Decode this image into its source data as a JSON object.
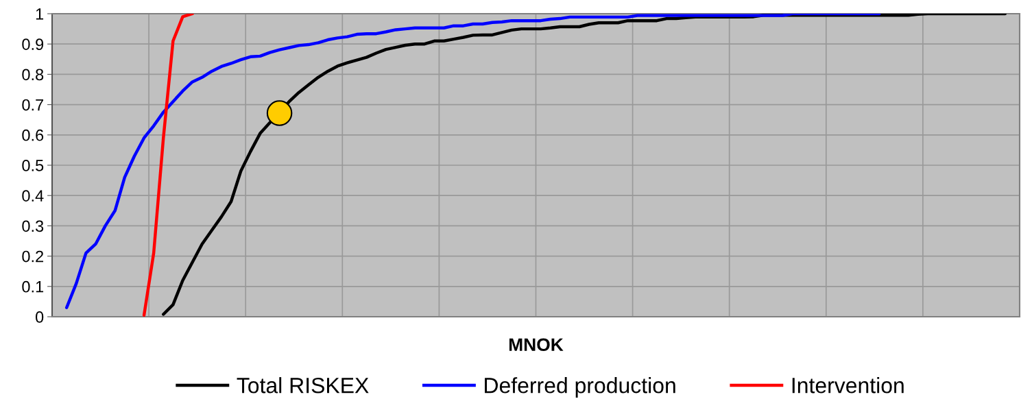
{
  "chart_data": {
    "type": "line",
    "xlabel": "MNOK",
    "categories": [
      null,
      null,
      null,
      null,
      null,
      null,
      null,
      null,
      null,
      null,
      null,
      null,
      null,
      null,
      null,
      null,
      null,
      null,
      null,
      null,
      null,
      null,
      null,
      null,
      null,
      null,
      null,
      null,
      null,
      null,
      null,
      null,
      null,
      null,
      null,
      null,
      null,
      null,
      null,
      null,
      null,
      null,
      null,
      null,
      null,
      null,
      null,
      null,
      null,
      null,
      null,
      null,
      null,
      null,
      null,
      null,
      null,
      null,
      null,
      null,
      null,
      null,
      null,
      null,
      null,
      null,
      null,
      null,
      null,
      null,
      null,
      null,
      null,
      null,
      null,
      null,
      null,
      null,
      null,
      null,
      null,
      null,
      null,
      null,
      null,
      null,
      null,
      null,
      null,
      null,
      null,
      null,
      null,
      null,
      null,
      null,
      null,
      null,
      null,
      null
    ],
    "ylim": [
      0,
      1
    ],
    "yticks": [
      0,
      0.1,
      0.2,
      0.3,
      0.4,
      0.5,
      0.6,
      0.7,
      0.8,
      0.9,
      1
    ],
    "tick_labels": "y",
    "grid": true,
    "legend": "bottom",
    "marker": "none",
    "line_style": "solid",
    "series": [
      {
        "name": "Total RISKEX",
        "color": "#000000",
        "values": [
          null,
          null,
          null,
          null,
          null,
          null,
          null,
          null,
          null,
          null,
          null,
          0.008,
          0.04,
          0.12,
          0.18,
          0.24,
          0.285,
          0.33,
          0.38,
          0.48,
          0.545,
          0.605,
          0.64,
          null,
          0.71,
          0.74,
          0.765,
          0.79,
          0.81,
          0.827,
          0.838,
          0.847,
          0.856,
          0.87,
          0.882,
          0.889,
          0.896,
          0.9,
          0.9,
          0.91,
          0.91,
          0.916,
          0.922,
          0.929,
          0.93,
          0.93,
          0.938,
          0.946,
          0.95,
          0.95,
          0.95,
          0.953,
          0.957,
          0.957,
          0.957,
          0.965,
          0.97,
          0.97,
          0.97,
          0.977,
          0.977,
          0.977,
          0.977,
          0.984,
          0.984,
          0.987,
          0.989,
          0.989,
          0.989,
          0.989,
          0.989,
          0.989,
          0.99,
          0.995,
          0.995,
          0.995,
          0.995,
          0.995,
          0.995,
          0.995,
          0.995,
          0.995,
          0.995,
          0.995,
          0.995,
          0.995,
          0.995,
          0.995,
          0.995,
          0.998,
          1,
          1,
          1,
          1,
          1,
          1,
          1,
          1,
          1,
          null
        ]
      },
      {
        "name": "Deferred production",
        "color": "#0000ff",
        "values": [
          null,
          0.03,
          0.11,
          0.21,
          0.24,
          0.3,
          0.35,
          0.46,
          0.53,
          0.59,
          0.63,
          0.675,
          0.71,
          0.745,
          0.775,
          0.79,
          0.81,
          0.826,
          0.836,
          0.848,
          0.858,
          0.86,
          0.872,
          0.881,
          0.888,
          0.895,
          0.898,
          0.904,
          0.914,
          0.92,
          0.924,
          0.932,
          0.934,
          0.934,
          0.94,
          0.947,
          0.95,
          0.953,
          0.953,
          0.953,
          0.953,
          0.96,
          0.96,
          0.966,
          0.966,
          0.971,
          0.973,
          0.977,
          0.977,
          0.977,
          0.977,
          0.982,
          0.984,
          0.989,
          0.989,
          0.989,
          0.989,
          0.989,
          0.989,
          0.989,
          0.994,
          0.994,
          0.994,
          0.994,
          0.994,
          0.994,
          0.994,
          0.994,
          0.994,
          0.994,
          0.994,
          0.994,
          0.994,
          0.994,
          0.994,
          0.994,
          1,
          1,
          1,
          1,
          1,
          1,
          1,
          1,
          1,
          1,
          null,
          null,
          null,
          null,
          null,
          null,
          null,
          null,
          null,
          null,
          null,
          null,
          null,
          null
        ]
      },
      {
        "name": "Intervention",
        "color": "#ff0000",
        "values": [
          null,
          null,
          null,
          null,
          null,
          null,
          null,
          null,
          null,
          0.005,
          0.21,
          0.59,
          0.91,
          0.99,
          1,
          null,
          null,
          null,
          null,
          null,
          null,
          null,
          null,
          null,
          null,
          null,
          null,
          null,
          null,
          null,
          null,
          null,
          null,
          null,
          null,
          null,
          null,
          null,
          null,
          null,
          null,
          null,
          null,
          null,
          null,
          null,
          null,
          null,
          null,
          null,
          null,
          null,
          null,
          null,
          null,
          null,
          null,
          null,
          null,
          null,
          null,
          null,
          null,
          null,
          null,
          null,
          null,
          null,
          null,
          null,
          null,
          null,
          null,
          null,
          null,
          null,
          null,
          null,
          null,
          null,
          null,
          null,
          null,
          null,
          null,
          null,
          null,
          null,
          null,
          null,
          null,
          null,
          null,
          null,
          null,
          null,
          null,
          null,
          null,
          null
        ]
      },
      {
        "type": "scatter",
        "marker": "circle",
        "color": "#ffcc00",
        "values": [
          null,
          null,
          null,
          null,
          null,
          null,
          null,
          null,
          null,
          null,
          null,
          null,
          null,
          null,
          null,
          null,
          null,
          null,
          null,
          null,
          null,
          null,
          null,
          0.672,
          null,
          null,
          null,
          null,
          null,
          null,
          null,
          null,
          null,
          null,
          null,
          null,
          null,
          null,
          null,
          null,
          null,
          null,
          null,
          null,
          null,
          null,
          null,
          null,
          null,
          null,
          null,
          null,
          null,
          null,
          null,
          null,
          null,
          null,
          null,
          null,
          null,
          null,
          null,
          null,
          null,
          null,
          null,
          null,
          null,
          null,
          null,
          null,
          null,
          null,
          null,
          null,
          null,
          null,
          null,
          null,
          null,
          null,
          null,
          null,
          null,
          null,
          null,
          null,
          null,
          null,
          null,
          null,
          null,
          null,
          null,
          null,
          null,
          null,
          null,
          null
        ]
      }
    ]
  }
}
